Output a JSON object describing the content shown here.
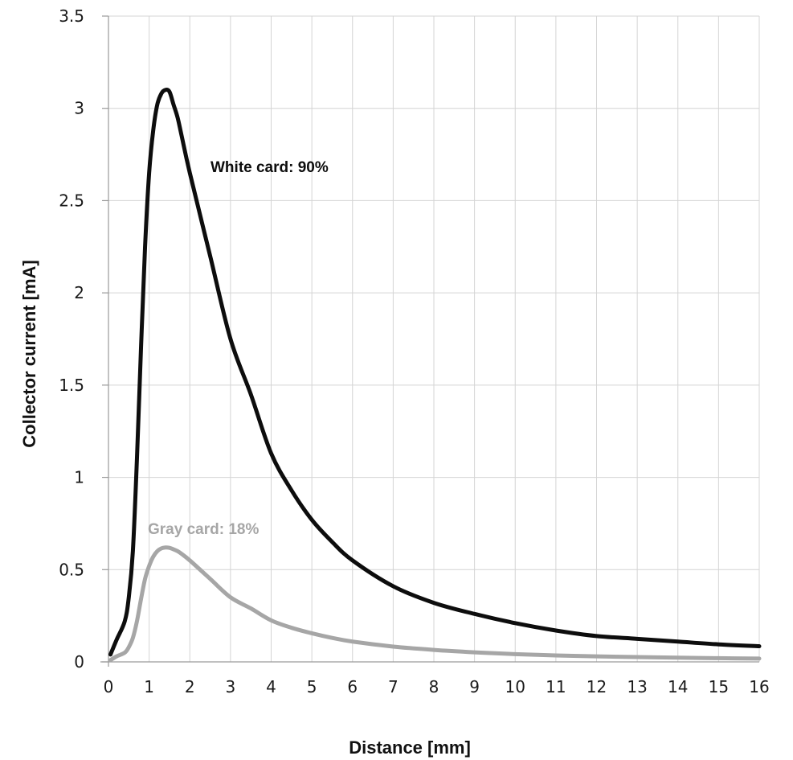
{
  "chart_data": {
    "type": "line",
    "xlabel": "Distance [mm]",
    "ylabel": "Collector current [mA]",
    "xlim": [
      0,
      16
    ],
    "ylim": [
      0,
      3.5
    ],
    "x_ticks": [
      0,
      1,
      2,
      3,
      4,
      5,
      6,
      7,
      8,
      9,
      10,
      11,
      12,
      13,
      14,
      15,
      16
    ],
    "y_ticks": [
      0,
      0.5,
      1,
      1.5,
      2,
      2.5,
      3,
      3.5
    ],
    "y_tick_labels": [
      "0",
      "0.5",
      "1",
      "1.5",
      "2",
      "2.5",
      "3",
      "3.5"
    ],
    "grid": true,
    "series": [
      {
        "name": "White card: 90%",
        "color": "#0d0d0d",
        "x": [
          0.05,
          0.2,
          0.4,
          0.5,
          0.6,
          0.7,
          0.8,
          0.9,
          1.0,
          1.1,
          1.2,
          1.3,
          1.4,
          1.5,
          1.6,
          1.7,
          1.8,
          2.0,
          2.5,
          3.0,
          3.5,
          4.0,
          4.5,
          5.0,
          5.5,
          6.0,
          7.0,
          8.0,
          9.0,
          10.0,
          11.0,
          12.0,
          13.0,
          14.0,
          15.0,
          16.0
        ],
        "y": [
          0.04,
          0.12,
          0.22,
          0.35,
          0.6,
          1.1,
          1.7,
          2.25,
          2.65,
          2.88,
          3.02,
          3.08,
          3.1,
          3.09,
          3.02,
          2.95,
          2.85,
          2.65,
          2.2,
          1.75,
          1.45,
          1.13,
          0.93,
          0.77,
          0.65,
          0.55,
          0.41,
          0.32,
          0.26,
          0.21,
          0.17,
          0.14,
          0.125,
          0.11,
          0.095,
          0.085
        ]
      },
      {
        "name": "Gray card: 18%",
        "color": "#a6a6a6",
        "x": [
          0.05,
          0.2,
          0.4,
          0.5,
          0.6,
          0.7,
          0.8,
          0.9,
          1.0,
          1.1,
          1.2,
          1.3,
          1.4,
          1.5,
          1.6,
          1.7,
          1.8,
          2.0,
          2.5,
          3.0,
          3.5,
          4.0,
          4.5,
          5.0,
          5.5,
          6.0,
          7.0,
          8.0,
          9.0,
          10.0,
          11.0,
          12.0,
          13.0,
          14.0,
          15.0,
          16.0
        ],
        "y": [
          0.01,
          0.03,
          0.05,
          0.08,
          0.13,
          0.22,
          0.34,
          0.45,
          0.52,
          0.57,
          0.6,
          0.615,
          0.62,
          0.618,
          0.61,
          0.6,
          0.585,
          0.55,
          0.45,
          0.35,
          0.29,
          0.225,
          0.185,
          0.155,
          0.13,
          0.11,
          0.083,
          0.065,
          0.052,
          0.042,
          0.035,
          0.03,
          0.026,
          0.023,
          0.02,
          0.018
        ]
      }
    ]
  }
}
